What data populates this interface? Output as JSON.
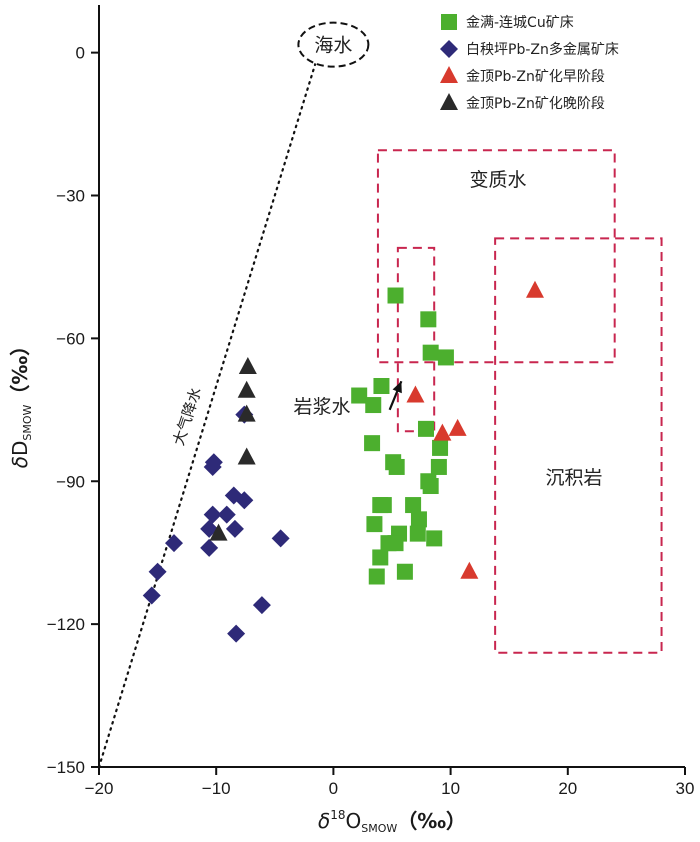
{
  "chart_data": {
    "type": "scatter",
    "title": "",
    "xlabel": {
      "prefix": "δ",
      "sup": "18",
      "main": "O",
      "sub": "SMOW",
      "unit": "（‰）"
    },
    "ylabel": {
      "prefix": "δ",
      "main": "D",
      "sub": "SMOW",
      "unit": "（‰）"
    },
    "xlim": [
      -20,
      30
    ],
    "ylim": [
      -150,
      10
    ],
    "xticks": [
      -20,
      -10,
      0,
      10,
      20,
      30
    ],
    "yticks": [
      0,
      -30,
      -60,
      -90,
      -120,
      -150
    ],
    "series": [
      {
        "name": "金满-连城Cu矿床",
        "marker": "square",
        "color": "#4caf2e",
        "points": [
          [
            5.3,
            -51
          ],
          [
            8.1,
            -56
          ],
          [
            8.3,
            -63
          ],
          [
            9.6,
            -64
          ],
          [
            2.2,
            -72
          ],
          [
            4.1,
            -70
          ],
          [
            3.4,
            -74
          ],
          [
            3.3,
            -82
          ],
          [
            7.9,
            -79
          ],
          [
            5.1,
            -86
          ],
          [
            5.4,
            -87
          ],
          [
            9.1,
            -83
          ],
          [
            9.0,
            -87
          ],
          [
            8.1,
            -90
          ],
          [
            8.3,
            -91
          ],
          [
            4.0,
            -95
          ],
          [
            4.3,
            -95
          ],
          [
            6.8,
            -95
          ],
          [
            7.3,
            -98
          ],
          [
            3.5,
            -99
          ],
          [
            5.6,
            -101
          ],
          [
            5.3,
            -103
          ],
          [
            4.7,
            -103
          ],
          [
            7.2,
            -101
          ],
          [
            8.6,
            -102
          ],
          [
            4.0,
            -106
          ],
          [
            3.7,
            -110
          ],
          [
            6.1,
            -109
          ]
        ]
      },
      {
        "name": "白秧坪Pb-Zn多金属矿床",
        "marker": "diamond",
        "color": "#2e2a78",
        "points": [
          [
            -7.6,
            -76
          ],
          [
            -10.2,
            -86
          ],
          [
            -10.3,
            -87
          ],
          [
            -8.5,
            -93
          ],
          [
            -7.6,
            -94
          ],
          [
            -10.3,
            -97
          ],
          [
            -9.1,
            -97
          ],
          [
            -10.6,
            -100
          ],
          [
            -8.4,
            -100
          ],
          [
            -13.6,
            -103
          ],
          [
            -10.6,
            -104
          ],
          [
            -4.5,
            -102
          ],
          [
            -15.0,
            -109
          ],
          [
            -15.5,
            -114
          ],
          [
            -6.1,
            -116
          ],
          [
            -8.3,
            -122
          ]
        ]
      },
      {
        "name": "金顶Pb-Zn矿化早阶段",
        "marker": "triangle",
        "color": "#d83a2e",
        "points": [
          [
            17.2,
            -50
          ],
          [
            7.0,
            -72
          ],
          [
            9.3,
            -80
          ],
          [
            10.6,
            -79
          ],
          [
            11.6,
            -109
          ]
        ]
      },
      {
        "name": "金顶Pb-Zn矿化晚阶段",
        "marker": "triangle",
        "color": "#2a2a2a",
        "points": [
          [
            -7.3,
            -66
          ],
          [
            -7.4,
            -71
          ],
          [
            -7.4,
            -76
          ],
          [
            -7.4,
            -85
          ],
          [
            -9.8,
            -101
          ]
        ]
      }
    ],
    "meteoric_line": {
      "label": "大气降水",
      "from": [
        -20,
        -150
      ],
      "to": [
        -1.25,
        0
      ]
    },
    "seawater": {
      "label": "海水",
      "center": [
        0,
        0
      ],
      "rx": 3,
      "ry": 4.5
    },
    "regions": [
      {
        "label": "变质水",
        "x": [
          3.8,
          24
        ],
        "y": [
          -65,
          -20.5
        ]
      },
      {
        "label": "岩浆水",
        "x": [
          5.5,
          8.6
        ],
        "y": [
          -79.5,
          -41
        ],
        "arrow_from": [
          4.8,
          -75
        ],
        "arrow_to": [
          5.8,
          -69
        ]
      },
      {
        "label": "沉积岩",
        "x": [
          13.8,
          28
        ],
        "y": [
          -126,
          -39
        ]
      }
    ],
    "legend": "top-right"
  }
}
